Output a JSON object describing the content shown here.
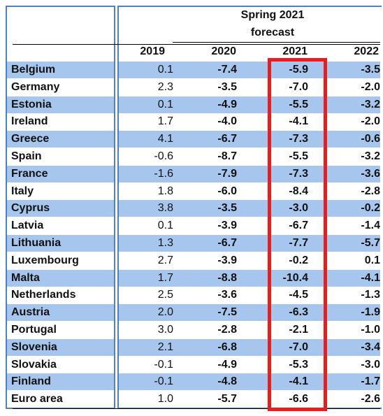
{
  "header": {
    "title_line1": "Spring 2021",
    "title_line2": "forecast",
    "columns": [
      "2019",
      "2020",
      "2021",
      "2022"
    ]
  },
  "rows": [
    {
      "country": "Belgium",
      "v2019": "0.1",
      "v2020": "-7.4",
      "v2021": "-5.9",
      "v2022": "-3.5"
    },
    {
      "country": "Germany",
      "v2019": "2.3",
      "v2020": "-3.5",
      "v2021": "-7.0",
      "v2022": "-2.0"
    },
    {
      "country": "Estonia",
      "v2019": "0.1",
      "v2020": "-4.9",
      "v2021": "-5.5",
      "v2022": "-3.2"
    },
    {
      "country": "Ireland",
      "v2019": "1.7",
      "v2020": "-4.0",
      "v2021": "-4.1",
      "v2022": "-2.0"
    },
    {
      "country": "Greece",
      "v2019": "4.1",
      "v2020": "-6.7",
      "v2021": "-7.3",
      "v2022": "-0.6"
    },
    {
      "country": "Spain",
      "v2019": "-0.6",
      "v2020": "-8.7",
      "v2021": "-5.5",
      "v2022": "-3.2"
    },
    {
      "country": "France",
      "v2019": "-1.6",
      "v2020": "-7.9",
      "v2021": "-7.3",
      "v2022": "-3.6"
    },
    {
      "country": "Italy",
      "v2019": "1.8",
      "v2020": "-6.0",
      "v2021": "-8.4",
      "v2022": "-2.8"
    },
    {
      "country": "Cyprus",
      "v2019": "3.8",
      "v2020": "-3.5",
      "v2021": "-3.0",
      "v2022": "-0.2"
    },
    {
      "country": "Latvia",
      "v2019": "0.1",
      "v2020": "-3.9",
      "v2021": "-6.7",
      "v2022": "-1.4"
    },
    {
      "country": "Lithuania",
      "v2019": "1.3",
      "v2020": "-6.7",
      "v2021": "-7.7",
      "v2022": "-5.7"
    },
    {
      "country": "Luxembourg",
      "v2019": "2.7",
      "v2020": "-3.9",
      "v2021": "-0.2",
      "v2022": "0.1"
    },
    {
      "country": "Malta",
      "v2019": "1.7",
      "v2020": "-8.8",
      "v2021": "-10.4",
      "v2022": "-4.1"
    },
    {
      "country": "Netherlands",
      "v2019": "2.5",
      "v2020": "-3.6",
      "v2021": "-4.5",
      "v2022": "-1.3"
    },
    {
      "country": "Austria",
      "v2019": "2.0",
      "v2020": "-7.5",
      "v2021": "-6.3",
      "v2022": "-1.9"
    },
    {
      "country": "Portugal",
      "v2019": "3.0",
      "v2020": "-2.8",
      "v2021": "-2.1",
      "v2022": "-1.0"
    },
    {
      "country": "Slovenia",
      "v2019": "2.1",
      "v2020": "-6.8",
      "v2021": "-7.0",
      "v2022": "-3.4"
    },
    {
      "country": "Slovakia",
      "v2019": "-0.1",
      "v2020": "-4.9",
      "v2021": "-5.3",
      "v2022": "-3.0"
    },
    {
      "country": "Finland",
      "v2019": "-0.1",
      "v2020": "-4.8",
      "v2021": "-4.1",
      "v2022": "-1.7"
    },
    {
      "country": "Euro area",
      "v2019": "1.0",
      "v2020": "-5.7",
      "v2021": "-6.6",
      "v2022": "-2.6"
    }
  ],
  "colors": {
    "band": "#a6c6ee",
    "frame": "#4f7fc4",
    "highlight": "#e81e1e"
  }
}
